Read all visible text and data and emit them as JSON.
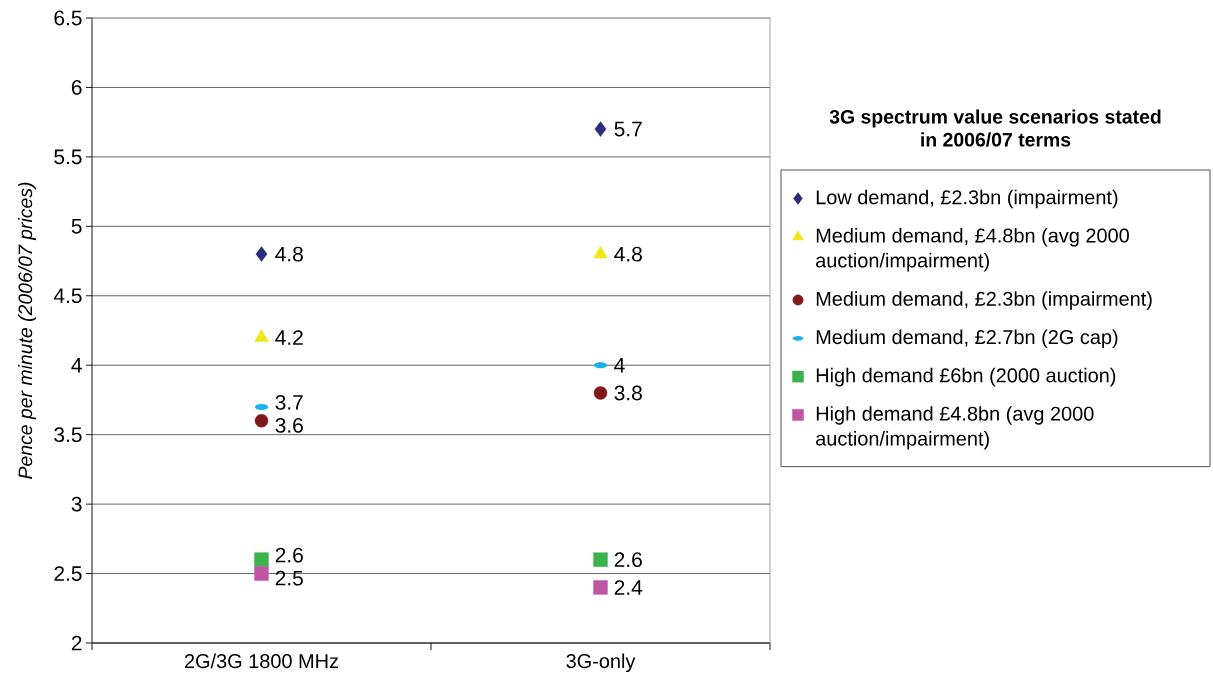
{
  "chart_data": {
    "type": "scatter",
    "ylabel": "Pence per minute (2006/07 prices)",
    "legend_title": "3G spectrum value scenarios stated in 2006/07 terms",
    "categories": [
      "2G/3G 1800 MHz",
      "3G-only"
    ],
    "series": [
      {
        "name": "Low demand, £2.3bn (impairment)",
        "color": "#2b2d7c",
        "marker": "diamond",
        "values": [
          4.8,
          5.7
        ]
      },
      {
        "name": "Medium demand, £4.8bn (avg 2000 auction/impairment)",
        "color": "#f2e51a",
        "marker": "triangle",
        "values": [
          4.2,
          4.8
        ]
      },
      {
        "name": "Medium demand, £2.3bn (impairment)",
        "color": "#801919",
        "marker": "circle",
        "values": [
          3.6,
          3.8
        ]
      },
      {
        "name": "Medium demand, £2.7bn (2G cap)",
        "color": "#1ab2ea",
        "values": [
          3.7,
          4
        ]
      },
      {
        "name": "High demand £6bn (2000 auction)",
        "color": "#3bb34a",
        "marker": "square",
        "values": [
          2.6,
          2.6
        ]
      },
      {
        "name": "High demand £4.8bn (avg 2000 auction/impairment)",
        "color": "#bf55a5",
        "marker": "square",
        "values": [
          2.5,
          2.4
        ]
      }
    ],
    "ylim": [
      2,
      6.5
    ],
    "yticks": [
      2,
      2.5,
      3,
      3.5,
      4,
      4.5,
      5,
      5.5,
      6,
      6.5
    ],
    "grid": "y",
    "legend": "right",
    "data_labels": true
  }
}
